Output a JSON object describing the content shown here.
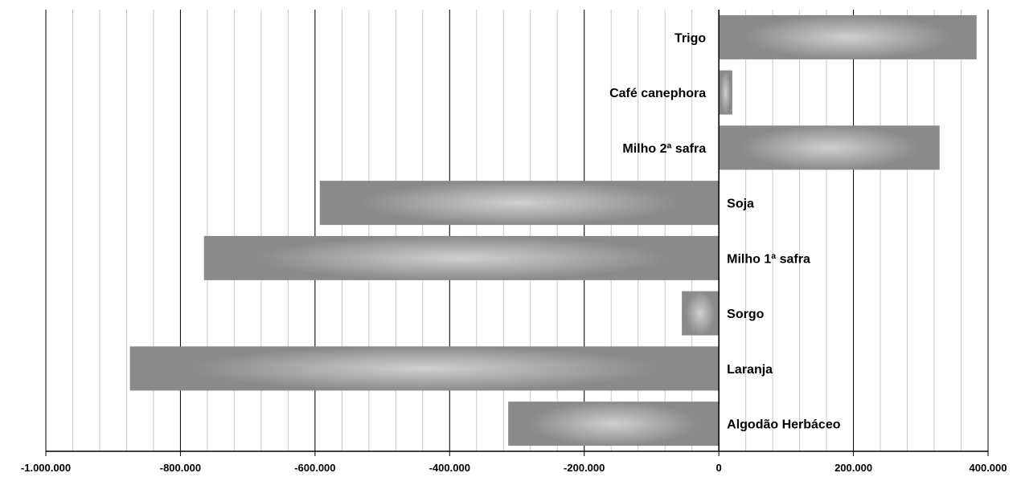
{
  "chart_data": {
    "type": "bar",
    "orientation": "horizontal",
    "title": "",
    "xlabel": "",
    "ylabel": "",
    "xlim": [
      -1000000,
      400000
    ],
    "major_ticks": [
      -1000000,
      -800000,
      -600000,
      -400000,
      -200000,
      0,
      200000,
      400000
    ],
    "tick_labels": [
      "-1.000.000",
      "-800.000",
      "-600.000",
      "-400.000",
      "-200.000",
      "0",
      "200.000",
      "400.000"
    ],
    "minor_tick_step": 40000,
    "grid": true,
    "legend": "none",
    "categories": [
      "Trigo",
      "Café canephora",
      "Milho 2ª safra",
      "Soja",
      "Milho 1ª safra",
      "Sorgo",
      "Laranja",
      "Algodão Herbáceo"
    ],
    "values": [
      383000,
      20000,
      328000,
      -593000,
      -765000,
      -55000,
      -875000,
      -313000
    ],
    "bar_color_edge": "#8a8a8a",
    "bar_color_center": "#cdcdcd"
  }
}
